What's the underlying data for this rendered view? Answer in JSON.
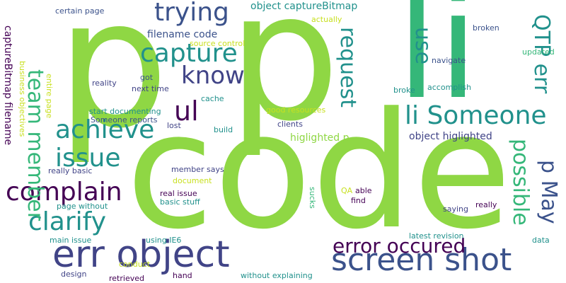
{
  "palette": {
    "dark_purple": "#440154",
    "indigo": "#3b528b",
    "slate_blue": "#414487",
    "teal": "#21918c",
    "sea_green": "#35b779",
    "light_green": "#8fd744",
    "yellow_green": "#c8e020",
    "yellow": "#fde725"
  },
  "words": [
    {
      "text": "code",
      "color": "#8fd744"
    },
    {
      "text": "p",
      "color": "#8fd744"
    },
    {
      "text": "li",
      "color": "#35b779"
    },
    {
      "text": "err object",
      "color": "#414487"
    },
    {
      "text": "screen shot",
      "color": "#3b528b"
    },
    {
      "text": "trying",
      "color": "#3b528b"
    },
    {
      "text": "capture",
      "color": "#21918c"
    },
    {
      "text": "know",
      "color": "#414487"
    },
    {
      "text": "achieve",
      "color": "#21918c"
    },
    {
      "text": "issue",
      "color": "#21918c"
    },
    {
      "text": "complain",
      "color": "#440154"
    },
    {
      "text": "clarify",
      "color": "#21918c"
    },
    {
      "text": "ul",
      "color": "#440154"
    },
    {
      "text": "li Someone",
      "color": "#21918c"
    },
    {
      "text": "error occured",
      "color": "#440154"
    },
    {
      "text": "team member",
      "color": "#35b779"
    },
    {
      "text": "request",
      "color": "#21918c"
    },
    {
      "text": "use",
      "color": "#21918c"
    },
    {
      "text": "QTP err",
      "color": "#21918c"
    },
    {
      "text": "possible",
      "color": "#35b779"
    },
    {
      "text": "p May",
      "color": "#3b528b"
    },
    {
      "text": "filename code",
      "color": "#3b528b"
    },
    {
      "text": "object captureBitmap",
      "color": "#21918c"
    },
    {
      "text": "higlighted p",
      "color": "#8fd744"
    },
    {
      "text": "object higlighted",
      "color": "#414487"
    },
    {
      "text": "certain page",
      "color": "#3b528b"
    },
    {
      "text": "reality",
      "color": "#414487"
    },
    {
      "text": "source control",
      "color": "#c8e020"
    },
    {
      "text": "actually",
      "color": "#c8e020"
    },
    {
      "text": "broken",
      "color": "#3b528b"
    },
    {
      "text": "updated",
      "color": "#35b779"
    },
    {
      "text": "navigate",
      "color": "#3b528b"
    },
    {
      "text": "accomplish",
      "color": "#21918c"
    },
    {
      "text": "broke",
      "color": "#21918c"
    },
    {
      "text": "got",
      "color": "#3b528b"
    },
    {
      "text": "next time",
      "color": "#414487"
    },
    {
      "text": "cache",
      "color": "#21918c"
    },
    {
      "text": "start documenting",
      "color": "#21918c"
    },
    {
      "text": "good resources",
      "color": "#c8e020"
    },
    {
      "text": "Someone reports",
      "color": "#3b528b"
    },
    {
      "text": "lost",
      "color": "#414487"
    },
    {
      "text": "clients",
      "color": "#414487"
    },
    {
      "text": "build",
      "color": "#21918c"
    },
    {
      "text": "captureBitmap filename",
      "color": "#440154"
    },
    {
      "text": "business objectives",
      "color": "#c8e020"
    },
    {
      "text": "entire page",
      "color": "#c8e020"
    },
    {
      "text": "really basic",
      "color": "#414487"
    },
    {
      "text": "member says",
      "color": "#414487"
    },
    {
      "text": "document",
      "color": "#c8e020"
    },
    {
      "text": "real issue",
      "color": "#440154"
    },
    {
      "text": "basic stuff",
      "color": "#21918c"
    },
    {
      "text": "page without",
      "color": "#21918c"
    },
    {
      "text": "sucks",
      "color": "#35b779"
    },
    {
      "text": "QA",
      "color": "#c8e020"
    },
    {
      "text": "able",
      "color": "#440154"
    },
    {
      "text": "find",
      "color": "#440154"
    },
    {
      "text": "saying",
      "color": "#414487"
    },
    {
      "text": "really",
      "color": "#440154"
    },
    {
      "text": "main issue",
      "color": "#21918c"
    },
    {
      "text": "using IE6",
      "color": "#21918c"
    },
    {
      "text": "latest revision",
      "color": "#21918c"
    },
    {
      "text": "data",
      "color": "#21918c"
    },
    {
      "text": "conduct",
      "color": "#c8e020"
    },
    {
      "text": "hand",
      "color": "#440154"
    },
    {
      "text": "design",
      "color": "#414487"
    },
    {
      "text": "retrieved",
      "color": "#440154"
    },
    {
      "text": "without explaining",
      "color": "#21918c"
    }
  ]
}
